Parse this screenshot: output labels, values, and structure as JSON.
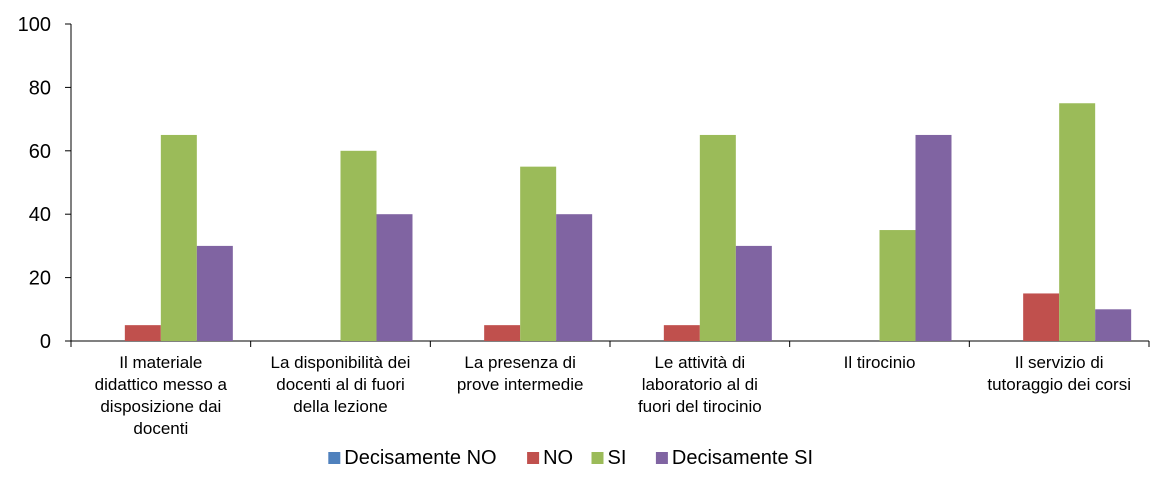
{
  "chart_data": {
    "type": "bar",
    "categories": [
      [
        "Il materiale",
        "didattico messo a",
        "disposizione dai",
        "docenti"
      ],
      [
        "La disponibilità dei",
        "docenti al di fuori",
        "della lezione"
      ],
      [
        "La presenza di",
        "prove intermedie"
      ],
      [
        "Le attività di",
        "laboratorio al di",
        "fuori del tirocinio"
      ],
      [
        "Il tirocinio"
      ],
      [
        "Il servizio di",
        "tutoraggio dei corsi"
      ]
    ],
    "series": [
      {
        "name": "Decisamente NO",
        "color": "#4f81bd",
        "values": [
          0,
          0,
          0,
          0,
          0,
          0
        ]
      },
      {
        "name": "NO",
        "color": "#c0504d",
        "values": [
          5,
          0,
          5,
          5,
          0,
          15
        ]
      },
      {
        "name": "SI",
        "color": "#9bbb59",
        "values": [
          65,
          60,
          55,
          65,
          35,
          75
        ]
      },
      {
        "name": "Decisamente SI",
        "color": "#8064a2",
        "values": [
          30,
          40,
          40,
          30,
          65,
          10
        ]
      }
    ],
    "ylim": [
      0,
      100
    ],
    "yticks": [
      "0",
      "20",
      "40",
      "60",
      "80",
      "100"
    ],
    "grid": false,
    "legend_position": "bottom"
  }
}
